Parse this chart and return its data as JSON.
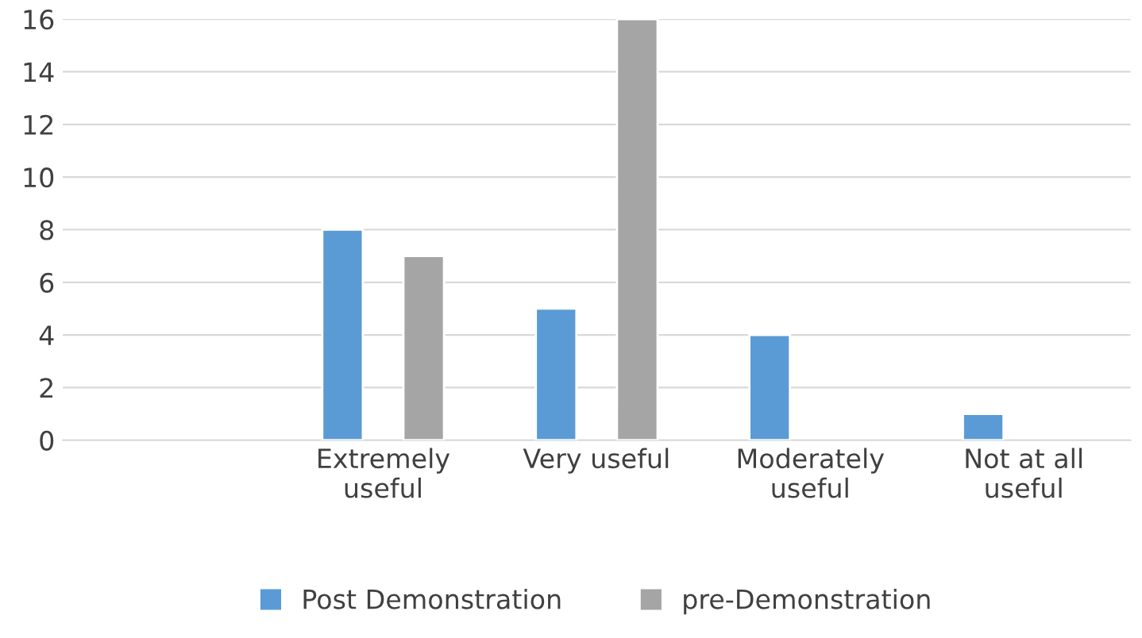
{
  "chart_data": {
    "type": "bar",
    "categories": [
      null,
      "Extremely\nuseful",
      "Very useful",
      "Moderately\nuseful",
      "Not at all\nuseful"
    ],
    "series": [
      {
        "name": "Post Demonstration",
        "color": "#5b9bd5",
        "values": [
          null,
          8,
          5,
          4,
          1
        ]
      },
      {
        "name": "pre-Demonstration",
        "color": "#a5a5a5",
        "values": [
          null,
          7,
          16,
          null,
          null
        ]
      }
    ],
    "ylim": [
      0,
      16
    ],
    "yticks": [
      0,
      2,
      4,
      6,
      8,
      10,
      12,
      14,
      16
    ],
    "grid": "y",
    "legend": "bottom"
  }
}
